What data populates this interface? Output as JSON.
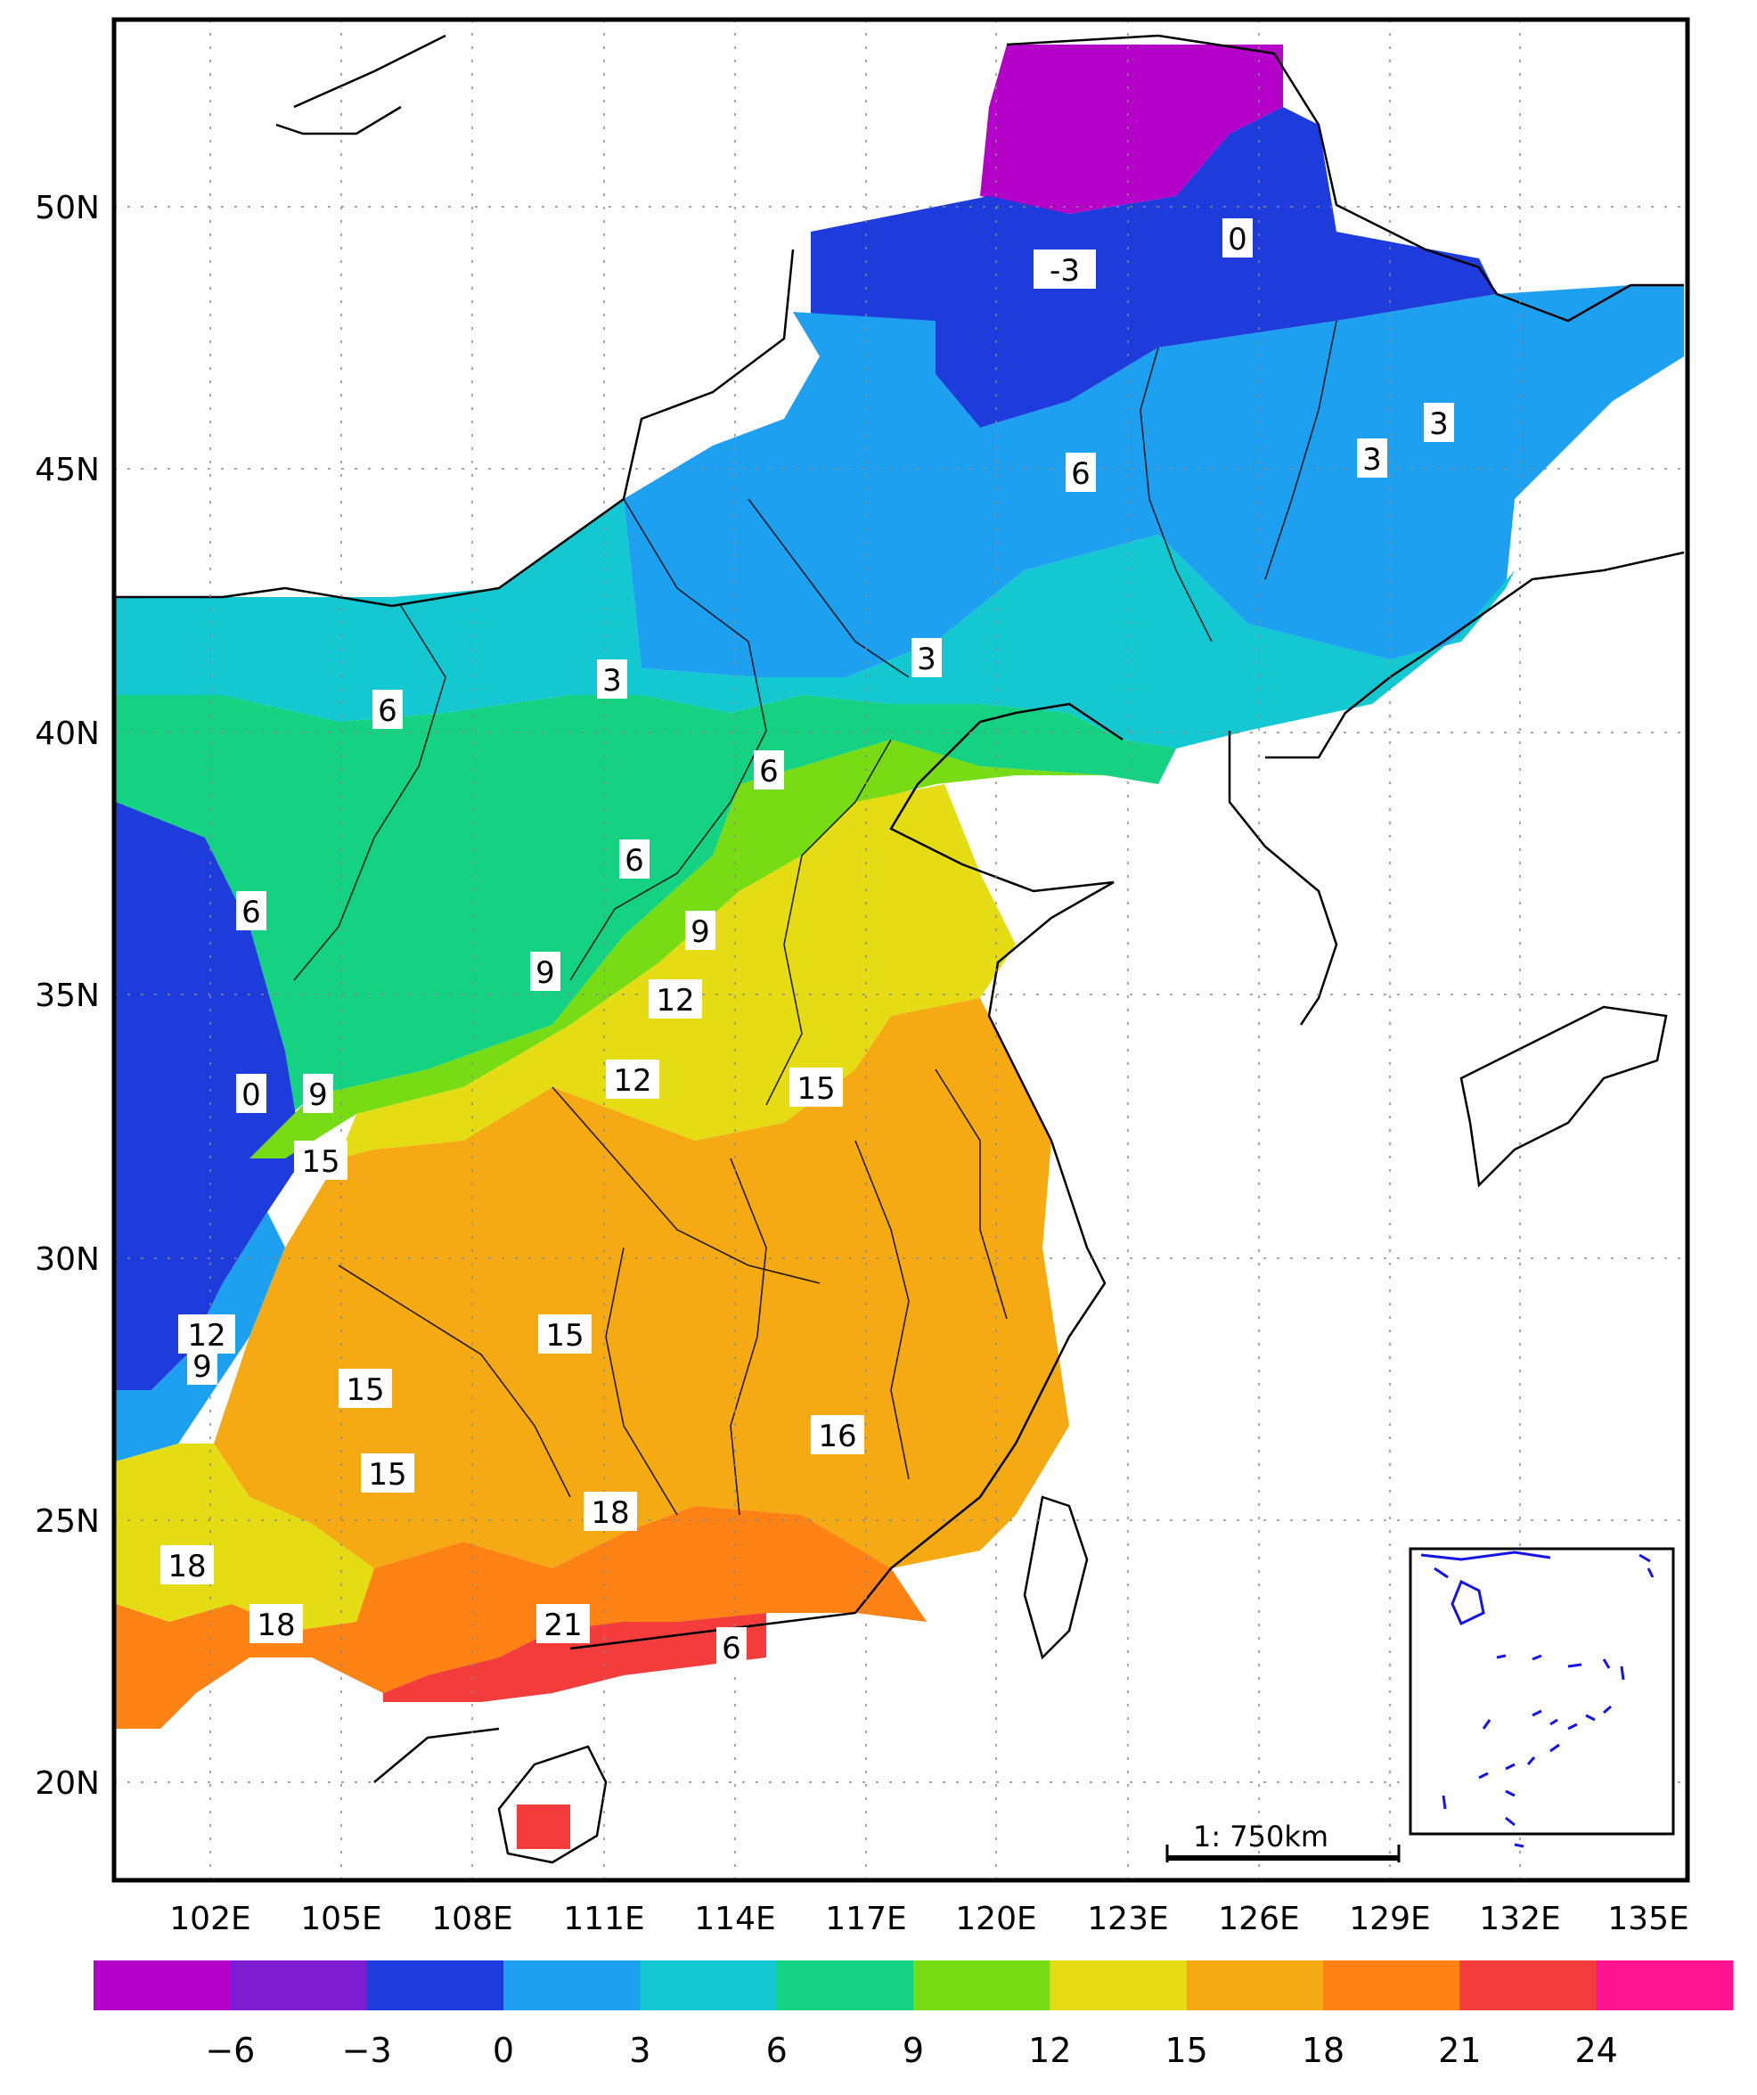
{
  "map": {
    "lat_labels": [
      "50N",
      "45N",
      "40N",
      "35N",
      "30N",
      "25N",
      "20N"
    ],
    "lon_labels": [
      "102E",
      "105E",
      "108E",
      "111E",
      "114E",
      "117E",
      "120E",
      "123E",
      "126E",
      "129E",
      "132E",
      "135E"
    ],
    "scale_bar_label": "1: 750km",
    "contour_labels": [
      "-3",
      "0",
      "3",
      "3",
      "6",
      "3",
      "6",
      "3",
      "6",
      "6",
      "9",
      "6",
      "9",
      "12",
      "12",
      "15",
      "0",
      "9",
      "15",
      "12",
      "9",
      "15",
      "15",
      "15",
      "16",
      "18",
      "18",
      "18",
      "21",
      "6"
    ]
  },
  "legend": {
    "tick_labels": [
      "-6",
      "-3",
      "0",
      "3",
      "6",
      "9",
      "12",
      "15",
      "18",
      "21",
      "24"
    ],
    "colors": [
      "#b400c8",
      "#7d1ed2",
      "#1e3cdc",
      "#1ea0f0",
      "#14c8d2",
      "#14d282",
      "#78dc14",
      "#e6dc14",
      "#f5aa14",
      "#ff8214",
      "#f53c3c",
      "#ff1490"
    ]
  }
}
